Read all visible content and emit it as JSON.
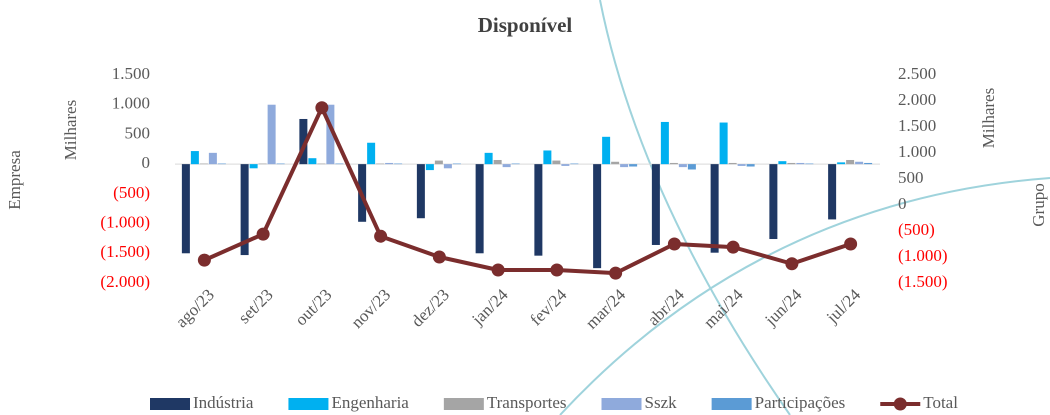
{
  "chart_data": {
    "type": "bar_line",
    "title": "Disponível",
    "y_axis_label": "Milhares",
    "y_axis_title": "Empresa",
    "y2_axis_label": "Milhares",
    "y2_axis_title": "Grupo",
    "categories": [
      "ago/23",
      "set/23",
      "out/23",
      "nov/23",
      "dez/23",
      "jan/24",
      "fev/24",
      "mar/24",
      "abr/24",
      "mai/24",
      "jun/24",
      "jul/24"
    ],
    "series": [
      {
        "name": "Indústria",
        "color": "#1f3864",
        "type": "bar",
        "values": [
          -1500,
          -1530,
          760,
          -970,
          -910,
          -1500,
          -1540,
          -1750,
          -1360,
          -1490,
          -1260,
          -930
        ]
      },
      {
        "name": "Engenharia",
        "color": "#00b0f0",
        "type": "bar",
        "values": [
          220,
          -70,
          100,
          360,
          -100,
          190,
          230,
          460,
          710,
          700,
          50,
          30
        ]
      },
      {
        "name": "Transportes",
        "color": "#a5a5a5",
        "type": "bar",
        "values": [
          10,
          10,
          10,
          10,
          60,
          70,
          60,
          40,
          20,
          20,
          20,
          70
        ]
      },
      {
        "name": "Sszk",
        "color": "#8faadc",
        "type": "bar",
        "values": [
          190,
          1000,
          1000,
          20,
          -70,
          -50,
          -30,
          -50,
          -50,
          -30,
          20,
          40
        ]
      },
      {
        "name": "Participações",
        "color": "#5b9bd5",
        "type": "bar",
        "values": [
          10,
          10,
          10,
          10,
          10,
          10,
          10,
          -40,
          -90,
          -40,
          10,
          20
        ]
      },
      {
        "name": "Total",
        "color": "#7b2d2d",
        "type": "line",
        "axis": "y2",
        "values": [
          -1060,
          -560,
          1870,
          -600,
          -1000,
          -1250,
          -1250,
          -1310,
          -750,
          -810,
          -1130,
          -750
        ]
      }
    ],
    "ylim": [
      -2000,
      1500
    ],
    "yticks": [
      {
        "value": 1500,
        "label": "1.500"
      },
      {
        "value": 1000,
        "label": "1.000"
      },
      500,
      0,
      {
        "value": -500,
        "label": "(500)"
      },
      {
        "value": -1000,
        "label": "(1.000)"
      },
      {
        "value": -1500,
        "label": "(1.500)"
      },
      {
        "value": -2000,
        "label": "(2.000)"
      }
    ],
    "y2lim": [
      -1500,
      2500
    ],
    "y2ticks": [
      {
        "value": 2500,
        "label": "2.500"
      },
      {
        "value": 2000,
        "label": "2.000"
      },
      {
        "value": 1500,
        "label": "1.500"
      },
      {
        "value": 1000,
        "label": "1.000"
      },
      500,
      0,
      {
        "value": -500,
        "label": "(500)"
      },
      {
        "value": -1000,
        "label": "(1.000)"
      },
      {
        "value": -1500,
        "label": "(1.500)"
      }
    ],
    "negative_tick_color": "#ff0000",
    "grid": false,
    "legend": "bottom"
  }
}
